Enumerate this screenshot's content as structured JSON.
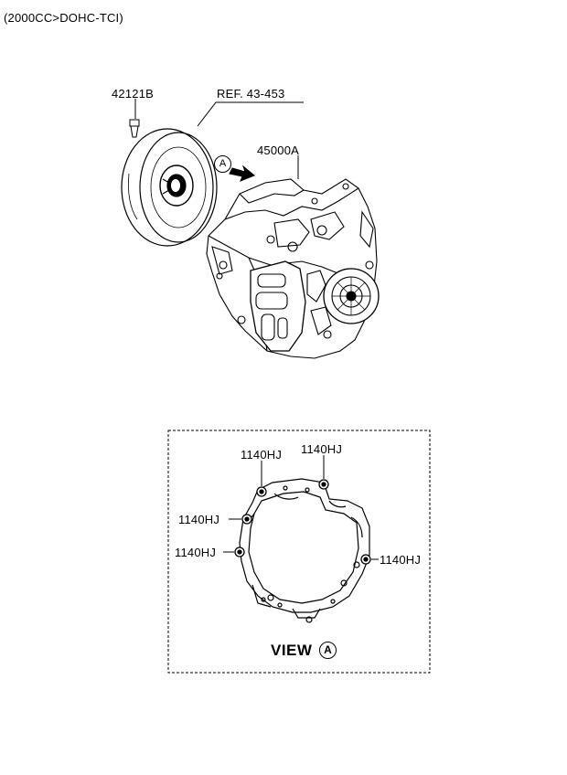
{
  "header": {
    "spec": "(2000CC>DOHC-TCI)"
  },
  "callouts": {
    "bolt": "42121B",
    "reference": "REF. 43-453",
    "transaxle": "45000A",
    "view_marker": "A"
  },
  "view": {
    "title": "VIEW",
    "marker": "A",
    "bolt_labels": [
      "1140HJ",
      "1140HJ",
      "1140HJ",
      "1140HJ",
      "1140HJ"
    ]
  }
}
